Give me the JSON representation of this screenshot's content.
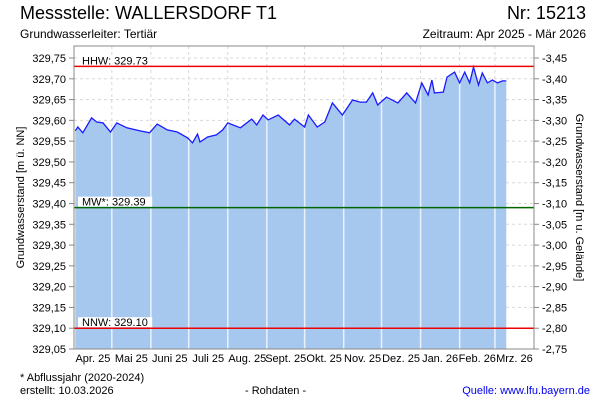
{
  "header": {
    "title": "Messstelle: WALLERSDORF T1",
    "number": "Nr: 15213",
    "aquifer": "Grundwasserleiter: Tertiär",
    "period": "Zeitraum: Apr 2025 - Mär 2026"
  },
  "footer": {
    "note": "* Abflussjahr (2020-2024)",
    "created": "erstellt:  10.03.2026",
    "raw": "- Rohdaten -",
    "source": "Quelle: www.lfu.bayern.de"
  },
  "colors": {
    "fill": "#a6c8ef",
    "line": "#1a1aff",
    "hhw": "#ee0000",
    "mw": "#006600",
    "nnw": "#ee0000"
  },
  "chart_data": {
    "type": "area",
    "ylabel": "Grundwasserstand [m ü. NN]",
    "y2label": "Grundwasserstand [m u. Gelände]",
    "ylim": [
      329.05,
      329.75
    ],
    "y2lim": [
      -2.75,
      -3.45
    ],
    "yticks": [
      "329,05",
      "329,10",
      "329,15",
      "329,20",
      "329,25",
      "329,30",
      "329,35",
      "329,40",
      "329,45",
      "329,50",
      "329,55",
      "329,60",
      "329,65",
      "329,70",
      "329,75"
    ],
    "y2ticks": [
      "-2,75",
      "-2,80",
      "-2,85",
      "-2,90",
      "-2,95",
      "-3,00",
      "-3,05",
      "-3,10",
      "-3,15",
      "-3,20",
      "-3,25",
      "-3,30",
      "-3,35",
      "-3,40",
      "-3,45"
    ],
    "xlim_days": [
      0,
      365
    ],
    "month_starts_days": [
      0,
      30,
      61,
      91,
      122,
      153,
      183,
      214,
      244,
      275,
      306,
      334,
      365
    ],
    "xticks": [
      "Apr. 25",
      "Mai 25",
      "Juni 25",
      "Juli 25",
      "Aug. 25",
      "Sept. 25",
      "Okt. 25",
      "Nov. 25",
      "Dez. 25",
      "Jan. 26",
      "Feb. 26",
      "Mrz. 26"
    ],
    "reference_lines": [
      {
        "label": "HHW: 329.73",
        "value": 329.73,
        "color": "#ee0000"
      },
      {
        "label": "MW*: 329.39",
        "value": 329.39,
        "color": "#006600"
      },
      {
        "label": "NNW: 329.10",
        "value": 329.1,
        "color": "#ee0000"
      }
    ],
    "series": [
      {
        "name": "Grundwasserstand",
        "x_days": [
          1,
          3,
          7,
          14,
          18,
          23,
          29,
          34,
          42,
          52,
          60,
          66,
          74,
          82,
          90,
          94,
          98,
          100,
          106,
          113,
          118,
          122,
          132,
          141,
          145,
          150,
          154,
          162,
          171,
          175,
          183,
          186,
          193,
          199,
          205,
          213,
          221,
          227,
          232,
          237,
          241,
          248,
          257,
          264,
          271,
          276,
          281,
          284,
          286,
          293,
          296,
          302,
          306,
          310,
          314,
          317,
          321,
          324,
          328,
          332,
          336,
          340,
          343
        ],
        "values": [
          329.575,
          329.584,
          329.57,
          329.606,
          329.596,
          329.594,
          329.572,
          329.594,
          329.582,
          329.575,
          329.57,
          329.591,
          329.577,
          329.572,
          329.558,
          329.546,
          329.567,
          329.548,
          329.56,
          329.565,
          329.577,
          329.594,
          329.582,
          329.603,
          329.589,
          329.613,
          329.601,
          329.613,
          329.589,
          329.603,
          329.584,
          329.613,
          329.584,
          329.596,
          329.642,
          329.613,
          329.649,
          329.644,
          329.644,
          329.666,
          329.637,
          329.656,
          329.642,
          329.666,
          329.642,
          329.69,
          329.661,
          329.697,
          329.666,
          329.668,
          329.704,
          329.716,
          329.69,
          329.716,
          329.69,
          329.728,
          329.685,
          329.714,
          329.69,
          329.697,
          329.69,
          329.695,
          329.695
        ]
      }
    ]
  }
}
